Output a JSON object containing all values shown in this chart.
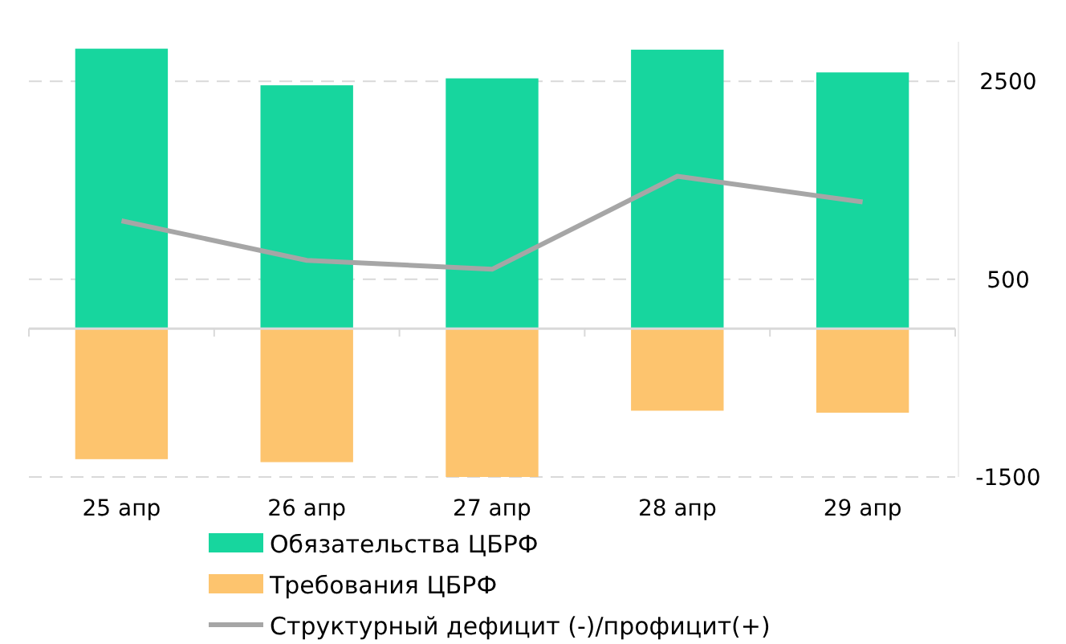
{
  "chart_data": {
    "type": "bar",
    "stacked": true,
    "categories": [
      "25 апр",
      "26 апр",
      "27 апр",
      "28 апр",
      "29 апр"
    ],
    "series": [
      {
        "name": "Обязательства ЦБРФ",
        "color": "#17d69e",
        "values": [
          2830,
          2460,
          2530,
          2820,
          2590
        ]
      },
      {
        "name": "Требования ЦБРФ",
        "color": "#fdc46e",
        "values": [
          -1320,
          -1350,
          -1500,
          -830,
          -850
        ]
      },
      {
        "name": "Структурный дефицит (-)/профицит(+)",
        "type": "line",
        "color": "#a6a6a6",
        "values": [
          1090,
          690,
          600,
          1540,
          1280
        ]
      }
    ],
    "ylim": [
      -1500,
      2900
    ],
    "yticks": [
      -1500,
      500,
      2500
    ],
    "grid": "y",
    "legend": "bottom"
  }
}
